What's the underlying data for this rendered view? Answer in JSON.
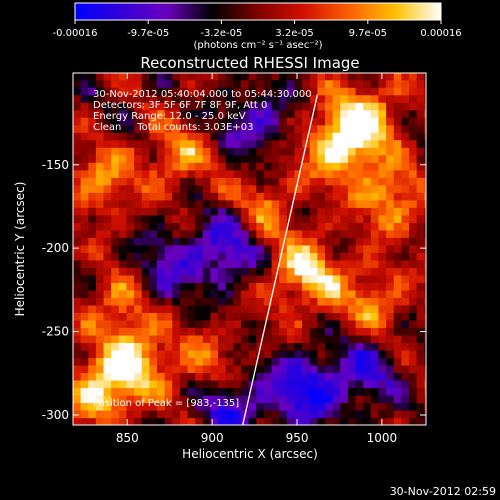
{
  "colorbar": {
    "tick_labels": [
      "-0.00016",
      "-9.7e-05",
      "-3.2e-05",
      "3.2e-05",
      "9.7e-05",
      "0.00016"
    ],
    "units_label": "(photons cm⁻² s⁻¹ asec⁻²)",
    "range": [
      -0.00016,
      0.00016
    ],
    "palette": [
      "#0000ff",
      "#3000d8",
      "#6a00c0",
      "#000000",
      "#800000",
      "#d01000",
      "#ff6000",
      "#ffc000",
      "#ffffff"
    ]
  },
  "chart_data": {
    "type": "heatmap",
    "title": "Reconstructed RHESSI Image",
    "xlabel": "Heliocentric X (arcsec)",
    "ylabel": "Heliocentric Y (arcsec)",
    "xlim": [
      818,
      1026
    ],
    "ylim": [
      -306,
      -95
    ],
    "x_ticks": [
      850,
      900,
      950,
      1000
    ],
    "y_ticks": [
      -300,
      -250,
      -200,
      -150
    ],
    "x_tick_labels": [
      "850",
      "900",
      "950",
      "1000"
    ],
    "y_tick_labels": [
      "-300",
      "-250",
      "-200",
      "-150"
    ],
    "info_lines": [
      "30-Nov-2012 05:40:04.000 to 05:44:30.000",
      "Detectors: 3F 5F 6F 7F 8F 9F, Att 0",
      "Energy Range: 12.0 - 25.0 keV",
      "Clean     Total counts: 3.03E+03"
    ],
    "peak_label": "Position of Peak = [983,-135]",
    "peak_position": [
      983,
      -135
    ],
    "limb_line": [
      [
        918,
        -306
      ],
      [
        962,
        -108
      ]
    ],
    "bright_regions": [
      {
        "x": 975,
        "y": -140,
        "level": 0.95
      },
      {
        "x": 990,
        "y": -120,
        "level": 0.8
      },
      {
        "x": 1005,
        "y": -170,
        "level": 0.7
      },
      {
        "x": 955,
        "y": -215,
        "level": 0.9
      },
      {
        "x": 835,
        "y": -285,
        "level": 0.9
      },
      {
        "x": 855,
        "y": -265,
        "level": 0.75
      },
      {
        "x": 848,
        "y": -230,
        "level": 0.6
      },
      {
        "x": 835,
        "y": -160,
        "level": 0.6
      },
      {
        "x": 880,
        "y": -145,
        "level": 0.55
      },
      {
        "x": 930,
        "y": -175,
        "level": 0.5
      },
      {
        "x": 895,
        "y": -270,
        "level": 0.45
      },
      {
        "x": 995,
        "y": -230,
        "level": 0.55
      }
    ],
    "dark_regions": [
      {
        "x": 907,
        "y": -200,
        "level": -0.8
      },
      {
        "x": 955,
        "y": -285,
        "level": -0.9
      },
      {
        "x": 925,
        "y": -125,
        "level": -0.6
      },
      {
        "x": 870,
        "y": -215,
        "level": -0.6
      },
      {
        "x": 910,
        "y": -295,
        "level": -0.7
      },
      {
        "x": 990,
        "y": -275,
        "level": -0.6
      }
    ]
  },
  "footer": {
    "timestamp": "30-Nov-2012 02:59"
  }
}
